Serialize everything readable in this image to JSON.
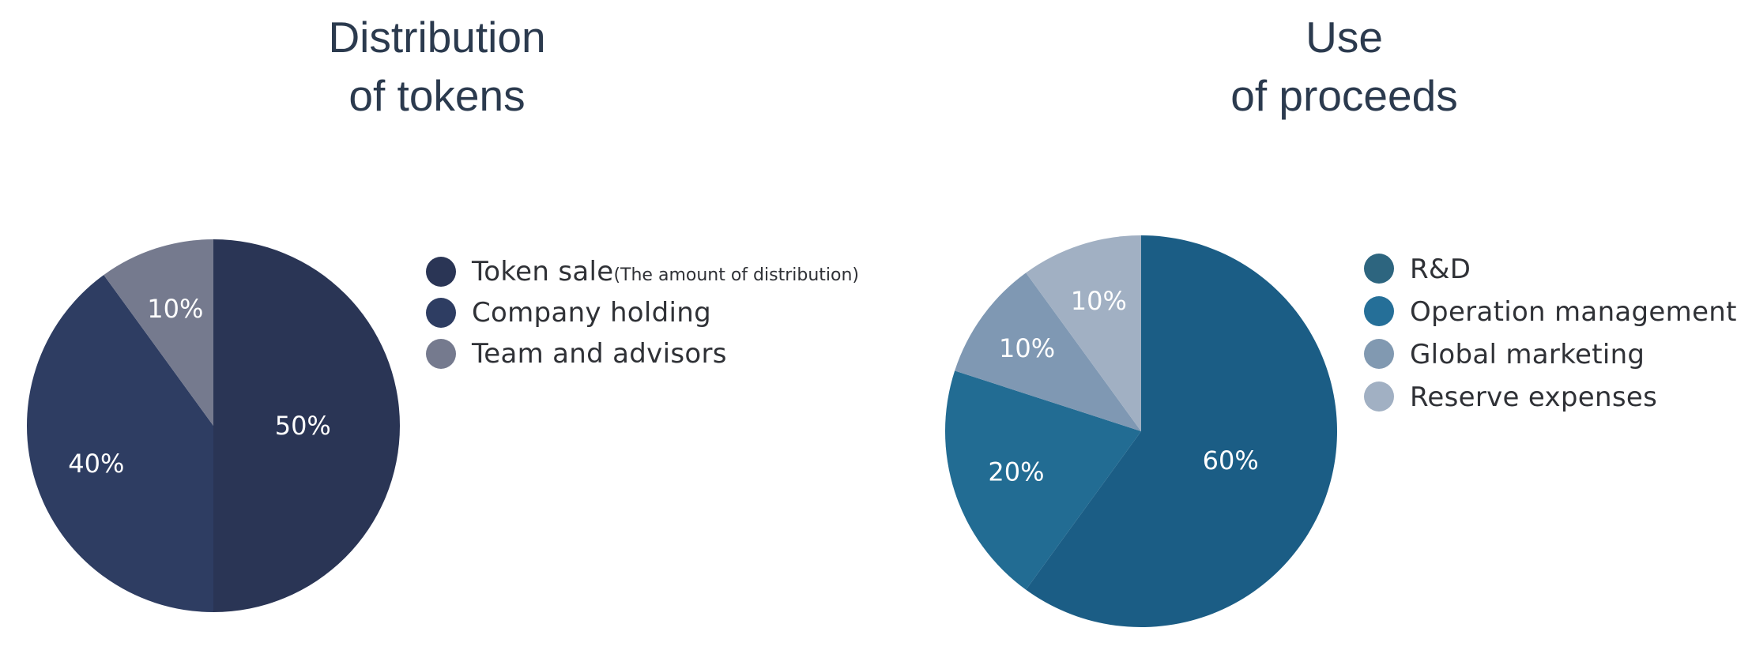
{
  "chart_data": [
    {
      "type": "pie",
      "title_lines": [
        "Distribution",
        "of tokens"
      ],
      "slices": [
        {
          "label": "Token sale",
          "label_note": "(The amount of distribution)",
          "value": 50,
          "value_label": "50%",
          "color": "#2a3555",
          "legend_color": "#2a3555"
        },
        {
          "label": "Company holding",
          "label_note": "",
          "value": 40,
          "value_label": "40%",
          "color": "#2e3d62",
          "legend_color": "#2e3d62"
        },
        {
          "label": "Team and advisors",
          "label_note": "",
          "value": 10,
          "value_label": "10%",
          "color": "#757a8e",
          "legend_color": "#757a8e"
        }
      ],
      "start_angle_deg": 0,
      "direction": "clockwise",
      "legend_position": "right"
    },
    {
      "type": "pie",
      "title_lines": [
        "Use",
        "of proceeds"
      ],
      "slices": [
        {
          "label": "R&D",
          "label_note": "",
          "value": 60,
          "value_label": "60%",
          "color": "#1b5d85",
          "legend_color": "#2d657f"
        },
        {
          "label": "Operation management",
          "label_note": "",
          "value": 20,
          "value_label": "20%",
          "color": "#226c93",
          "legend_color": "#256f98"
        },
        {
          "label": "Global marketing",
          "label_note": "",
          "value": 10,
          "value_label": "10%",
          "color": "#7f98b3",
          "legend_color": "#8199b1"
        },
        {
          "label": "Reserve expenses",
          "label_note": "",
          "value": 10,
          "value_label": "10%",
          "color": "#a1b0c3",
          "legend_color": "#a1b0c3"
        }
      ],
      "start_angle_deg": 0,
      "direction": "clockwise",
      "legend_position": "right"
    }
  ],
  "colors": {
    "title": "#2b3a4e",
    "legend_text": "#2f3136",
    "slice_label": "#ffffff"
  }
}
